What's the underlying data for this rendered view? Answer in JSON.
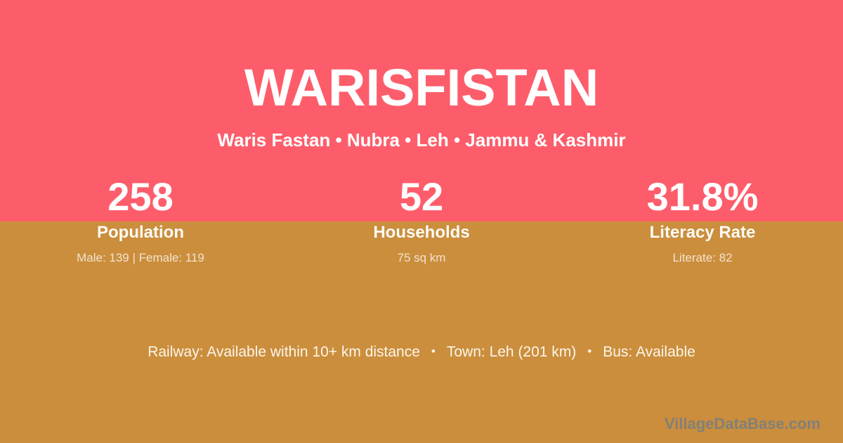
{
  "header": {
    "title": "WARISFISTAN",
    "breadcrumb": "Waris Fastan • Nubra • Leh • Jammu & Kashmir"
  },
  "stats": [
    {
      "value": "258",
      "label": "Population",
      "detail": "Male: 139 | Female: 119"
    },
    {
      "value": "52",
      "label": "Households",
      "detail": "75 sq km"
    },
    {
      "value": "31.8%",
      "label": "Literacy Rate",
      "detail": "Literate: 82"
    }
  ],
  "transport": {
    "railway": "Railway: Available within 10+ km distance",
    "town": "Town: Leh (201 km)",
    "bus": "Bus: Available",
    "separator": "•"
  },
  "watermark": "VillageDataBase.com",
  "colors": {
    "top_background": "#fd5d6b",
    "bottom_background": "#cb8e3d",
    "primary_text": "#ffffff",
    "muted_text": "#f2e3c6",
    "watermark_text": "#828078"
  }
}
